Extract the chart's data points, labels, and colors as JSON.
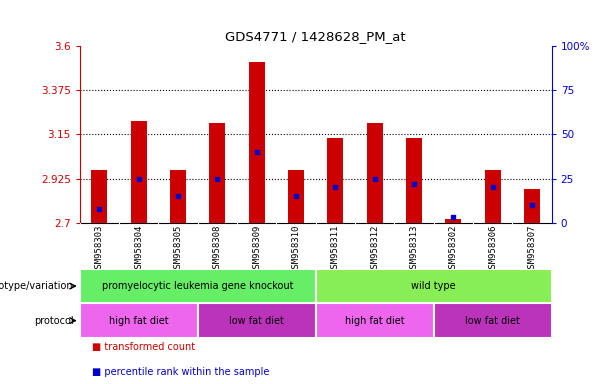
{
  "title": "GDS4771 / 1428628_PM_at",
  "samples": [
    "GSM958303",
    "GSM958304",
    "GSM958305",
    "GSM958308",
    "GSM958309",
    "GSM958310",
    "GSM958311",
    "GSM958312",
    "GSM958313",
    "GSM958302",
    "GSM958306",
    "GSM958307"
  ],
  "bar_values": [
    2.97,
    3.22,
    2.97,
    3.21,
    3.52,
    2.97,
    3.13,
    3.21,
    3.13,
    2.72,
    2.97,
    2.87
  ],
  "blue_values": [
    8,
    25,
    15,
    25,
    40,
    15,
    20,
    25,
    22,
    3,
    20,
    10
  ],
  "ymin": 2.7,
  "ymax": 3.6,
  "yticks": [
    2.7,
    2.925,
    3.15,
    3.375,
    3.6
  ],
  "ytick_labels": [
    "2.7",
    "2.925",
    "3.15",
    "3.375",
    "3.6"
  ],
  "right_yticks": [
    0,
    25,
    50,
    75,
    100
  ],
  "right_ytick_labels": [
    "0",
    "25",
    "50",
    "75",
    "100%"
  ],
  "grid_values": [
    2.925,
    3.15,
    3.375
  ],
  "bar_color": "#cc0000",
  "blue_color": "#0000cc",
  "genotype_groups": [
    {
      "label": "promyelocytic leukemia gene knockout",
      "start": 0,
      "end": 6,
      "color": "#66ee66"
    },
    {
      "label": "wild type",
      "start": 6,
      "end": 12,
      "color": "#88ee55"
    }
  ],
  "protocol_groups": [
    {
      "label": "high fat diet",
      "start": 0,
      "end": 3,
      "color": "#ee66ee"
    },
    {
      "label": "low fat diet",
      "start": 3,
      "end": 6,
      "color": "#bb33bb"
    },
    {
      "label": "high fat diet",
      "start": 6,
      "end": 9,
      "color": "#ee66ee"
    },
    {
      "label": "low fat diet",
      "start": 9,
      "end": 12,
      "color": "#bb33bb"
    }
  ],
  "genotype_label": "genotype/variation",
  "protocol_label": "protocol",
  "legend_items": [
    {
      "label": "transformed count",
      "color": "#cc0000"
    },
    {
      "label": "percentile rank within the sample",
      "color": "#0000cc"
    }
  ],
  "left_axis_color": "#cc0000",
  "right_axis_color": "#0000cc",
  "xtick_bg": "#d8d8d8",
  "bar_width": 0.4
}
